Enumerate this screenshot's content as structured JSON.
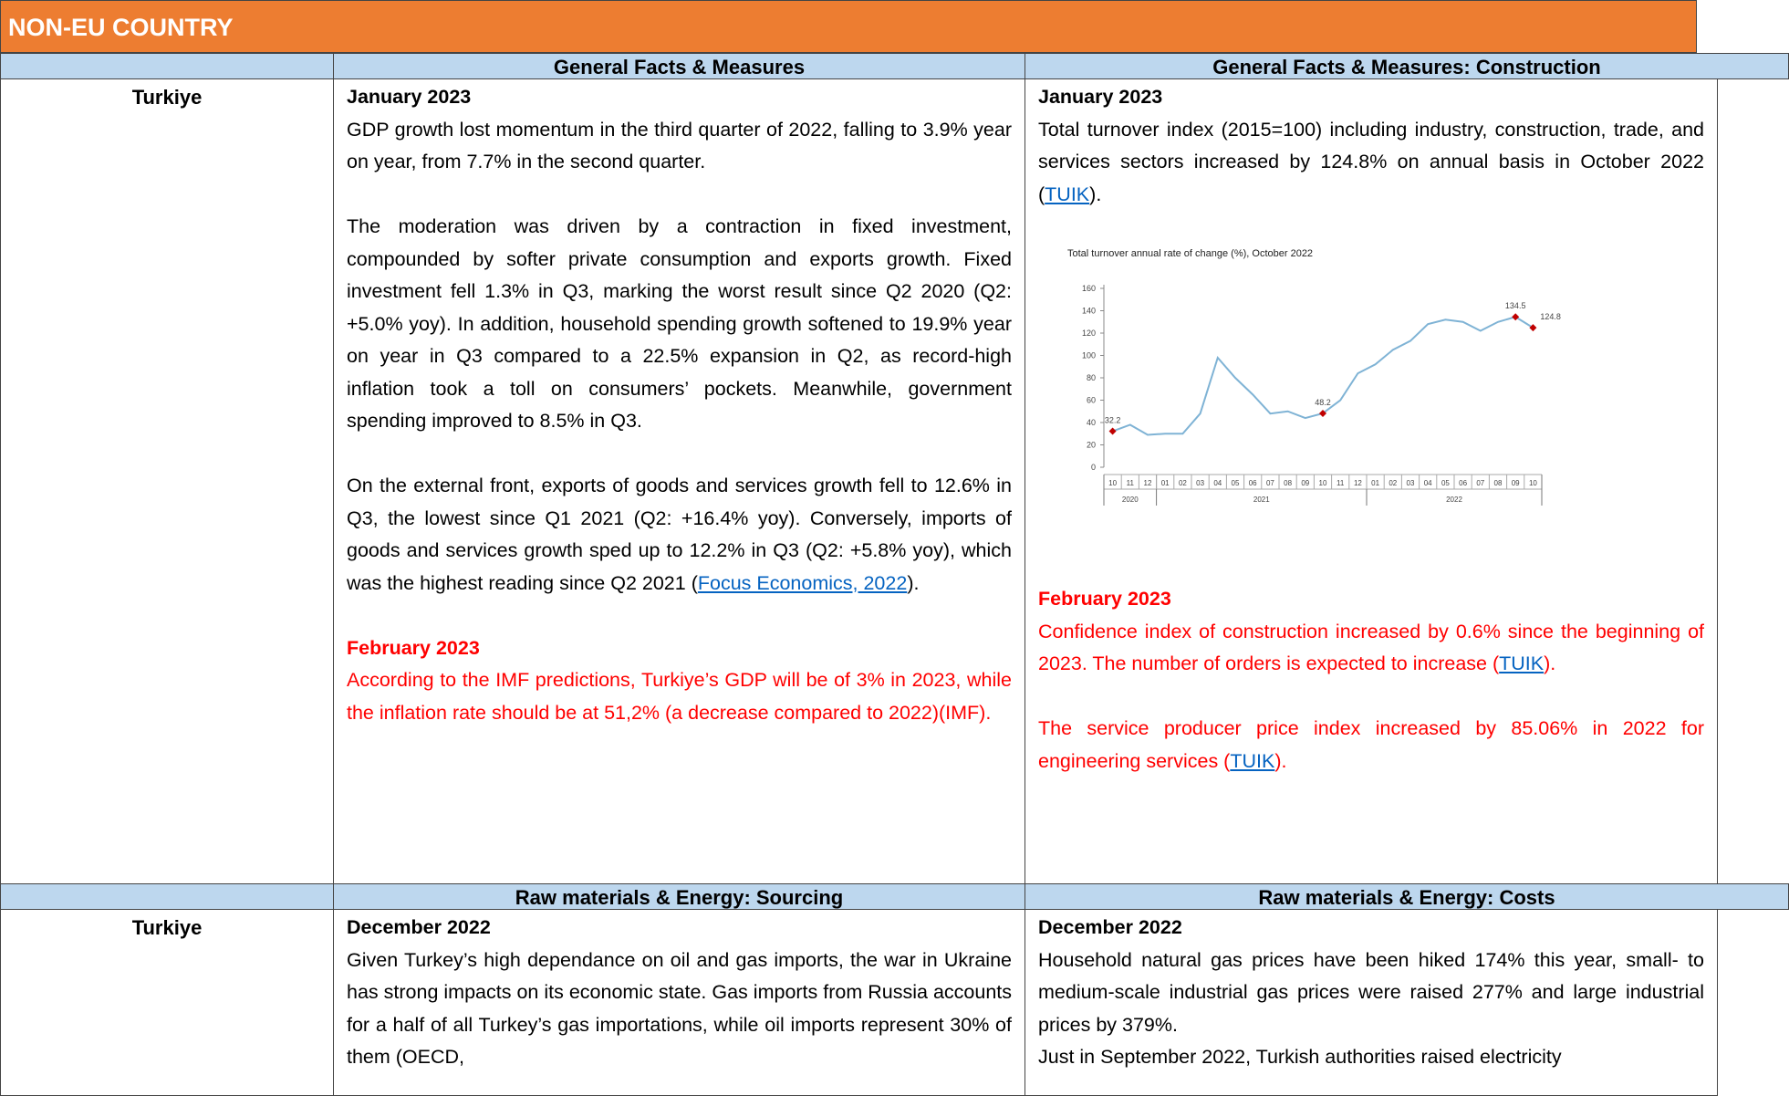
{
  "header": "NON-EU COUNTRY",
  "sections": [
    {
      "columns": [
        "General Facts & Measures",
        "General Facts & Measures: Construction"
      ],
      "country": "Turkiye",
      "cells": [
        [
          {
            "date": "January 2023",
            "paragraphs": [
              [
                "GDP growth lost momentum in the third quarter of 2022, falling to 3.9% year on year, from 7.7% in the second quarter."
              ],
              [
                "The moderation was driven by a contraction in fixed investment, compounded by softer private consumption and exports growth. Fixed investment fell 1.3% in Q3, marking the worst result since Q2 2020 (Q2: +5.0% yoy). In addition, household spending growth softened to 19.9% year on year in Q3 compared to a 22.5% expansion in Q2, as record-high inflation took a toll on consumers’ pockets. Meanwhile, government spending improved to 8.5% in Q3."
              ],
              [
                "On the external front, exports of goods and services growth fell to 12.6% in Q3, the lowest since Q1 2021 (Q2: +16.4% yoy). Conversely, imports of goods and services growth sped up to 12.2% in Q3 (Q2: +5.8% yoy), which was the highest reading since Q2 2021 (",
                {
                  "link": "Focus Economics, 2022"
                },
                ")."
              ]
            ]
          },
          {
            "date": "February 2023",
            "color": "#ff0000",
            "paragraphs": [
              [
                "According to the IMF predictions, Turkiye’s GDP will be of 3% in 2023, while the inflation rate should be at 51,2% (a decrease compared to 2022)(IMF)."
              ]
            ]
          }
        ],
        [
          {
            "date": "January 2023",
            "paragraphs": [
              [
                "Total turnover index (2015=100) including industry, construction, trade, and services sectors increased by 124.8% on annual basis in October 2022 (",
                {
                  "link": "TUIK"
                },
                ")."
              ]
            ],
            "chart": {
              "chart_data": {
                "type": "line",
                "title": "Total turnover annual rate of change (%), October 2022",
                "categories": [
                  "10",
                  "11",
                  "12",
                  "01",
                  "02",
                  "03",
                  "04",
                  "05",
                  "06",
                  "07",
                  "08",
                  "09",
                  "10",
                  "11",
                  "12",
                  "01",
                  "02",
                  "03",
                  "04",
                  "05",
                  "06",
                  "07",
                  "08",
                  "09",
                  "10"
                ],
                "year_labels": [
                  "2020",
                  "2021",
                  "2022"
                ],
                "values": [
                  32.2,
                  38,
                  29,
                  30,
                  30,
                  48,
                  98,
                  80,
                  65,
                  48,
                  50,
                  44,
                  48.2,
                  60,
                  84,
                  92,
                  105,
                  113,
                  128,
                  132,
                  130,
                  122,
                  130,
                  134.5,
                  124.8
                ],
                "value_labels": [
                  "32.2",
                  null,
                  null,
                  null,
                  null,
                  null,
                  null,
                  null,
                  null,
                  null,
                  null,
                  null,
                  "48.2",
                  null,
                  null,
                  null,
                  null,
                  null,
                  null,
                  null,
                  null,
                  null,
                  null,
                  "134.5",
                  "124.8"
                ],
                "color": "#7fb3d5",
                "marker_color": "#c00000",
                "ylim": [
                  0,
                  160
                ],
                "yticks": [
                  0,
                  20,
                  40,
                  60,
                  80,
                  100,
                  120,
                  140,
                  160
                ]
              }
            }
          },
          {
            "date": "February 2023",
            "color": "#ff0000",
            "paragraphs": [
              [
                "Confidence index of construction increased by 0.6% since the beginning of 2023. The number of orders is expected to increase (",
                {
                  "link": "TUIK"
                },
                ")."
              ],
              [
                "The service producer price index increased by 85.06% in 2022 for engineering services (",
                {
                  "link": "TUIK"
                },
                ")."
              ]
            ]
          }
        ]
      ]
    },
    {
      "columns": [
        "Raw materials & Energy: Sourcing",
        "Raw materials & Energy: Costs"
      ],
      "country": "Turkiye",
      "cells": [
        [
          {
            "date": "December 2022",
            "paragraphs": [
              [
                "Given Turkey’s high dependance on oil and gas imports, the war in Ukraine has strong impacts on its economic state. Gas imports from Russia accounts for a half of all Turkey’s gas importations, while oil imports represent 30% of them (OECD,"
              ]
            ]
          }
        ],
        [
          {
            "date": "December 2022",
            "paragraphs": [
              [
                "Household natural gas prices have been hiked 174% this year, small- to medium-scale industrial gas prices were raised 277% and large industrial prices by 379%."
              ],
              [
                "Just in September 2022, Turkish authorities raised electricity"
              ]
            ]
          }
        ]
      ]
    }
  ]
}
